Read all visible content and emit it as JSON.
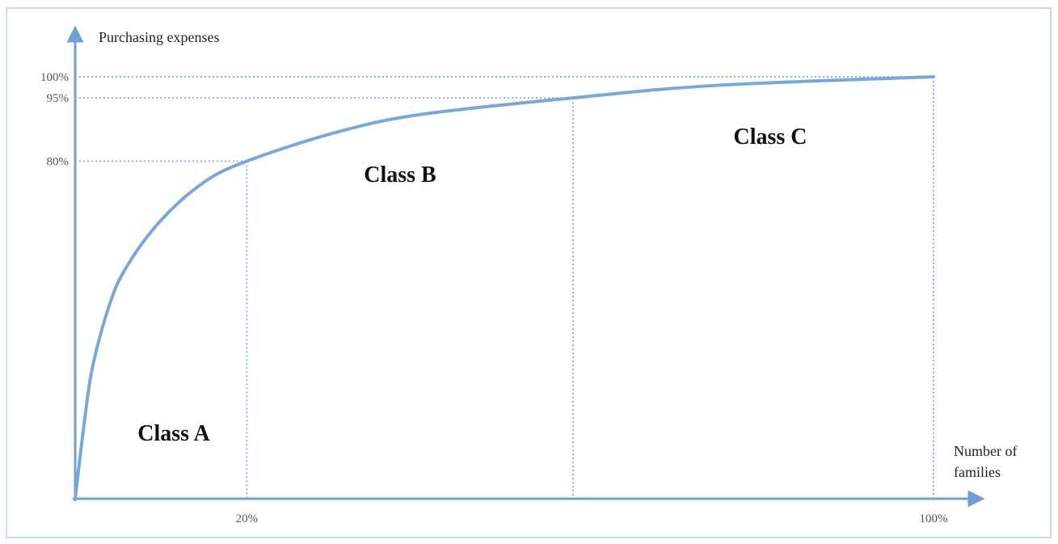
{
  "chart_data": {
    "type": "line",
    "y_label": "Purchasing expenses",
    "x_label": "Number of families",
    "x": [
      0,
      1,
      2,
      4,
      6,
      10,
      15,
      20,
      30,
      40,
      58,
      75,
      100
    ],
    "values": [
      0,
      17,
      31,
      46,
      55,
      66,
      75,
      80,
      86.6,
      91,
      95,
      98,
      100
    ],
    "color": "#7ba7d7",
    "xlim": [
      0,
      100
    ],
    "ylim": [
      0,
      100
    ],
    "xticks": [
      {
        "value": 20,
        "label": "20%"
      },
      {
        "value": 100,
        "label": "100%"
      }
    ],
    "yticks": [
      {
        "value": 80,
        "label": "80%"
      },
      {
        "value": 95,
        "label": "95%"
      },
      {
        "value": 100,
        "label": "100%"
      }
    ],
    "annotations": [
      "Class A",
      "Class B",
      "Class C"
    ]
  }
}
